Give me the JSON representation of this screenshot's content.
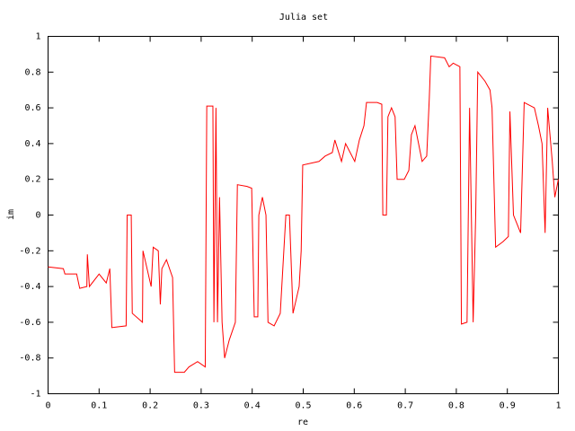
{
  "chart_data": {
    "type": "line",
    "title": "Julia set",
    "xlabel": "re",
    "ylabel": "im",
    "xlim": [
      0,
      1
    ],
    "ylim": [
      -1,
      1
    ],
    "xticks": [
      0,
      0.1,
      0.2,
      0.3,
      0.4,
      0.5,
      0.6,
      0.7,
      0.8,
      0.9,
      1
    ],
    "yticks": [
      -1,
      -0.8,
      -0.6,
      -0.4,
      -0.2,
      0,
      0.2,
      0.4,
      0.6,
      0.8,
      1
    ],
    "grid": false,
    "series": [
      {
        "color": "#ff0000",
        "x": [
          0,
          0.03,
          0.033,
          0.056,
          0.062,
          0.076,
          0.077,
          0.081,
          0.1,
          0.114,
          0.121,
          0.125,
          0.153,
          0.155,
          0.163,
          0.165,
          0.185,
          0.186,
          0.202,
          0.206,
          0.216,
          0.22,
          0.223,
          0.232,
          0.244,
          0.248,
          0.267,
          0.276,
          0.293,
          0.308,
          0.311,
          0.323,
          0.325,
          0.329,
          0.332,
          0.336,
          0.341,
          0.346,
          0.355,
          0.367,
          0.371,
          0.39,
          0.399,
          0.404,
          0.411,
          0.413,
          0.42,
          0.427,
          0.431,
          0.443,
          0.455,
          0.466,
          0.473,
          0.48,
          0.492,
          0.496,
          0.499,
          0.531,
          0.543,
          0.557,
          0.562,
          0.575,
          0.583,
          0.592,
          0.601,
          0.61,
          0.619,
          0.624,
          0.645,
          0.654,
          0.656,
          0.663,
          0.666,
          0.673,
          0.68,
          0.684,
          0.698,
          0.707,
          0.712,
          0.719,
          0.726,
          0.733,
          0.742,
          0.747,
          0.75,
          0.777,
          0.786,
          0.794,
          0.807,
          0.81,
          0.821,
          0.826,
          0.833,
          0.838,
          0.842,
          0.856,
          0.866,
          0.87,
          0.877,
          0.891,
          0.902,
          0.905,
          0.912,
          0.919,
          0.926,
          0.933,
          0.953,
          0.961,
          0.968,
          0.974,
          0.979,
          0.988,
          0.993,
          1.0
        ],
        "values": [
          -0.29,
          -0.3,
          -0.33,
          -0.33,
          -0.41,
          -0.4,
          -0.22,
          -0.4,
          -0.33,
          -0.38,
          -0.3,
          -0.63,
          -0.62,
          0.0,
          0.0,
          -0.55,
          -0.6,
          -0.2,
          -0.4,
          -0.18,
          -0.2,
          -0.5,
          -0.3,
          -0.25,
          -0.35,
          -0.88,
          -0.88,
          -0.85,
          -0.82,
          -0.85,
          0.61,
          0.61,
          -0.6,
          0.6,
          -0.6,
          0.1,
          -0.6,
          -0.8,
          -0.7,
          -0.6,
          0.17,
          0.16,
          0.15,
          -0.57,
          -0.57,
          0.0,
          0.1,
          0.0,
          -0.6,
          -0.62,
          -0.55,
          0.0,
          0.0,
          -0.55,
          -0.4,
          -0.2,
          0.28,
          0.3,
          0.33,
          0.35,
          0.42,
          0.3,
          0.4,
          0.35,
          0.3,
          0.42,
          0.5,
          0.63,
          0.63,
          0.62,
          0.0,
          0.0,
          0.55,
          0.6,
          0.55,
          0.2,
          0.2,
          0.25,
          0.45,
          0.5,
          0.4,
          0.3,
          0.33,
          0.65,
          0.89,
          0.88,
          0.83,
          0.85,
          0.83,
          -0.61,
          -0.6,
          0.6,
          -0.6,
          0.0,
          0.8,
          0.75,
          0.7,
          0.6,
          -0.18,
          -0.15,
          -0.12,
          0.58,
          0.0,
          -0.05,
          -0.1,
          0.63,
          0.6,
          0.5,
          0.4,
          -0.1,
          0.6,
          0.3,
          0.1,
          0.2
        ]
      }
    ]
  }
}
